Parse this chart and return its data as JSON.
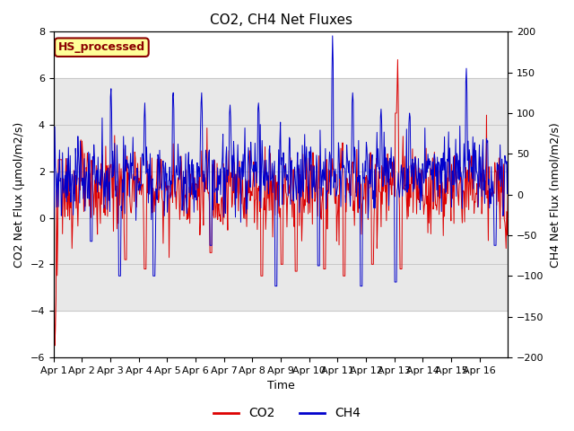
{
  "title": "CO2, CH4 Net Fluxes",
  "xlabel": "Time",
  "ylabel_left": "CO2 Net Flux (μmol/m2/s)",
  "ylabel_right": "CH4 Net Flux (nmol/m2/s)",
  "ylim_left": [
    -6,
    8
  ],
  "ylim_right": [
    -200,
    200
  ],
  "yticks_left": [
    -6,
    -4,
    -2,
    0,
    2,
    4,
    6,
    8
  ],
  "yticks_right": [
    -200,
    -150,
    -100,
    -50,
    0,
    50,
    100,
    150,
    200
  ],
  "xmin": 0,
  "xmax": 16,
  "xtick_positions": [
    0,
    1,
    2,
    3,
    4,
    5,
    6,
    7,
    8,
    9,
    10,
    11,
    12,
    13,
    14,
    15
  ],
  "xtick_labels": [
    "Apr 1",
    "Apr 2",
    "Apr 3",
    "Apr 4",
    "Apr 5",
    "Apr 6",
    "Apr 7",
    "Apr 8",
    "Apr 9",
    "Apr 10",
    "Apr 11",
    "Apr 12",
    "Apr 13",
    "Apr 14",
    "Apr 15",
    "Apr 16"
  ],
  "co2_color": "#dd0000",
  "ch4_color": "#0000cc",
  "legend_label_co2": "CO2",
  "legend_label_ch4": "CH4",
  "annotation_text": "HS_processed",
  "annotation_color": "#8b0000",
  "annotation_bg": "#ffff99",
  "grid_color": "#bbbbbb",
  "bg_shade_ymin": -4,
  "bg_shade_ymax": 6,
  "bg_shade_color": "#e8e8e8",
  "title_fontsize": 11,
  "axis_label_fontsize": 9,
  "tick_fontsize": 8,
  "legend_fontsize": 10,
  "linewidth": 0.7
}
